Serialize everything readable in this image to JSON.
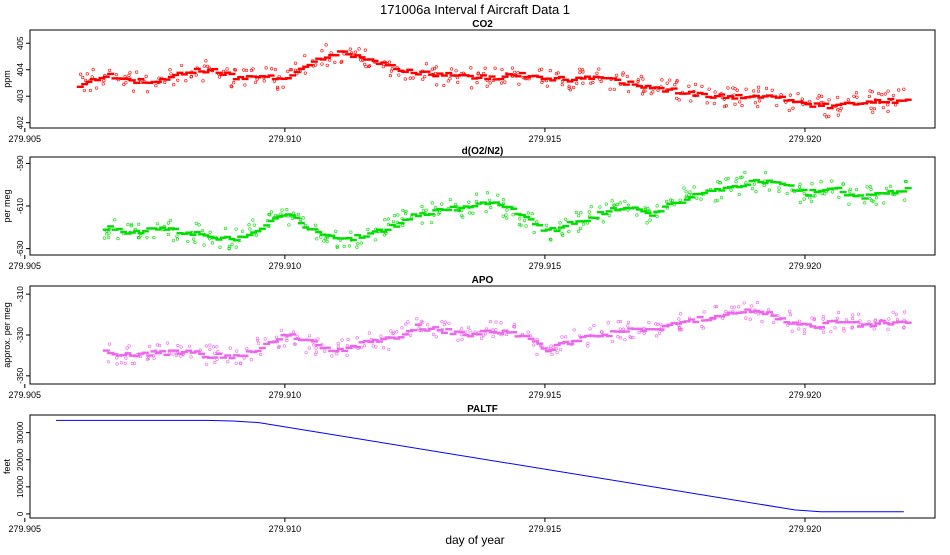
{
  "figure": {
    "title": "171006a   Interval f Aircraft Data 1",
    "xlabel": "day of year"
  },
  "colors": {
    "co2": "#ff0000",
    "o2n2": "#00e000",
    "apo": "#ee66ee",
    "paltf": "#0000ff",
    "axis": "#000000"
  },
  "chart_data": [
    {
      "type": "scatter",
      "title": "CO2",
      "ylabel": "ppm",
      "xlim": [
        279.9051,
        279.9225
      ],
      "ylim": [
        401.8,
        405.5
      ],
      "x_ticks": [
        "279.905",
        "279.910",
        "279.915",
        "279.920"
      ],
      "y_ticks": [
        "402",
        "403",
        "404",
        "405"
      ],
      "series": [
        {
          "name": "CO2",
          "x": [
            279.906,
            279.9065,
            279.907,
            279.9075,
            279.908,
            279.9085,
            279.909,
            279.9095,
            279.91,
            279.9105,
            279.911,
            279.9115,
            279.912,
            279.9125,
            279.913,
            279.9135,
            279.914,
            279.9145,
            279.915,
            279.9155,
            279.916,
            279.9165,
            279.917,
            279.9175,
            279.918,
            279.9185,
            279.919,
            279.9195,
            279.92,
            279.9205,
            279.921,
            279.9215,
            279.922
          ],
          "y": [
            403.4,
            403.8,
            403.6,
            403.5,
            403.9,
            404.0,
            403.7,
            403.8,
            403.6,
            404.3,
            404.7,
            404.4,
            404.1,
            403.9,
            403.8,
            403.7,
            403.7,
            403.8,
            403.7,
            403.6,
            403.8,
            403.5,
            403.3,
            403.2,
            403.0,
            403.0,
            403.0,
            402.9,
            402.7,
            402.6,
            402.8,
            402.8,
            402.9
          ]
        }
      ]
    },
    {
      "type": "scatter",
      "title": "d(O2/N2)",
      "ylabel": "per meg",
      "xlim": [
        279.9051,
        279.9225
      ],
      "ylim": [
        -633,
        -587
      ],
      "x_ticks": [
        "279.905",
        "279.910",
        "279.915",
        "279.920"
      ],
      "y_ticks": [
        "-590",
        "-610",
        "-630"
      ],
      "series": [
        {
          "name": "d(O2/N2)",
          "x": [
            279.9065,
            279.907,
            279.9075,
            279.908,
            279.9085,
            279.909,
            279.9095,
            279.91,
            279.9105,
            279.911,
            279.9115,
            279.912,
            279.9125,
            279.913,
            279.9135,
            279.914,
            279.9145,
            279.915,
            279.9155,
            279.916,
            279.9165,
            279.917,
            279.9175,
            279.918,
            279.9185,
            279.919,
            279.9195,
            279.92,
            279.9205,
            279.921,
            279.9215,
            279.922
          ],
          "y": [
            -620,
            -623,
            -621,
            -622,
            -624,
            -626,
            -620,
            -614,
            -622,
            -626,
            -624,
            -620,
            -614,
            -612,
            -610,
            -608,
            -614,
            -622,
            -618,
            -614,
            -610,
            -614,
            -608,
            -604,
            -602,
            -598,
            -600,
            -604,
            -602,
            -606,
            -604,
            -602
          ]
        }
      ]
    },
    {
      "type": "scatter",
      "title": "APO",
      "ylabel": "approx. per meg",
      "xlim": [
        279.9051,
        279.9225
      ],
      "ylim": [
        -354,
        -306
      ],
      "x_ticks": [
        "279.905",
        "279.910",
        "279.915",
        "279.920"
      ],
      "y_ticks": [
        "-310",
        "-330",
        "-350"
      ],
      "series": [
        {
          "name": "APO",
          "x": [
            279.9065,
            279.907,
            279.9075,
            279.908,
            279.9085,
            279.909,
            279.9095,
            279.91,
            279.9105,
            279.911,
            279.9115,
            279.912,
            279.9125,
            279.913,
            279.9135,
            279.914,
            279.9145,
            279.915,
            279.9155,
            279.916,
            279.9165,
            279.917,
            279.9175,
            279.918,
            279.9185,
            279.919,
            279.9195,
            279.92,
            279.9205,
            279.921,
            279.9215,
            279.922
          ],
          "y": [
            -338,
            -340,
            -339,
            -338,
            -340,
            -341,
            -336,
            -330,
            -334,
            -338,
            -334,
            -332,
            -326,
            -328,
            -330,
            -328,
            -330,
            -337,
            -333,
            -330,
            -328,
            -328,
            -324,
            -322,
            -320,
            -318,
            -322,
            -326,
            -324,
            -325,
            -324,
            -324
          ]
        }
      ]
    },
    {
      "type": "line",
      "title": "PALTF",
      "ylabel": "feet",
      "xlim": [
        279.9051,
        279.9225
      ],
      "ylim": [
        -1500,
        36500
      ],
      "x_ticks": [
        "279.905",
        "279.910",
        "279.915",
        "279.920"
      ],
      "y_ticks": [
        "0",
        "10000",
        "20000",
        "30000"
      ],
      "series": [
        {
          "name": "PALTF",
          "x": [
            279.9056,
            279.9085,
            279.909,
            279.9095,
            279.9198,
            279.9203,
            279.9219
          ],
          "y": [
            34500,
            34500,
            34300,
            33700,
            1500,
            800,
            800
          ]
        }
      ]
    }
  ]
}
